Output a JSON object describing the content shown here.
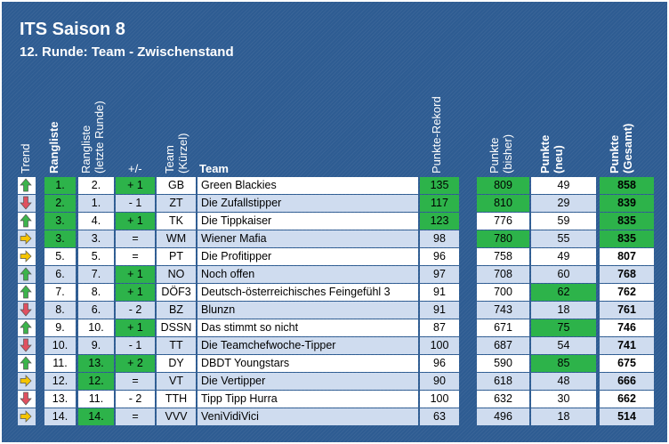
{
  "title": "ITS Saison 8",
  "subtitle": "12. Runde: Team - Zwischenstand",
  "headers": {
    "trend": "Trend",
    "rangliste": "Rangliste",
    "rangliste_letzte": [
      "Rangliste",
      "(letzte Runde)"
    ],
    "plusminus": "+/-",
    "team_kuerzel": [
      "Team",
      "(Kürzel)"
    ],
    "team": "Team",
    "rekord": "Punkte-Rekord",
    "bisher": [
      "Punkte",
      "(bisher)"
    ],
    "neu": [
      "Punkte",
      "(neu)"
    ],
    "gesamt": [
      "Punkte",
      "(Gesamt)"
    ]
  },
  "colors": {
    "green": "#2db34a",
    "band": "#cfdcef",
    "white": "#ffffff",
    "up": "#3cb44b",
    "down": "#e05060",
    "same": "#f5c400"
  },
  "rows": [
    {
      "trend": "up",
      "rank": "1.",
      "last": "2.",
      "pm": "+ 1",
      "code": "GB",
      "team": "Green Blackies",
      "rekord": "135",
      "bisher": "809",
      "neu": "49",
      "gesamt": "858",
      "hl": {
        "rank": 1,
        "pm": 1,
        "rekord": 1,
        "bisher": 1,
        "gesamt": 1
      }
    },
    {
      "trend": "down",
      "rank": "2.",
      "last": "1.",
      "pm": "- 1",
      "code": "ZT",
      "team": "Die Zufallstipper",
      "rekord": "117",
      "bisher": "810",
      "neu": "29",
      "gesamt": "839",
      "hl": {
        "rank": 1,
        "rekord": 1,
        "bisher": 1,
        "gesamt": 1
      }
    },
    {
      "trend": "up",
      "rank": "3.",
      "last": "4.",
      "pm": "+ 1",
      "code": "TK",
      "team": "Die Tippkaiser",
      "rekord": "123",
      "bisher": "776",
      "neu": "59",
      "gesamt": "835",
      "hl": {
        "rank": 1,
        "pm": 1,
        "rekord": 1,
        "gesamt": 1
      }
    },
    {
      "trend": "same",
      "rank": "3.",
      "last": "3.",
      "pm": "=",
      "code": "WM",
      "team": "Wiener Mafia",
      "rekord": "98",
      "bisher": "780",
      "neu": "55",
      "gesamt": "835",
      "hl": {
        "rank": 1,
        "bisher": 1,
        "gesamt": 1
      }
    },
    {
      "trend": "same",
      "rank": "5.",
      "last": "5.",
      "pm": "=",
      "code": "PT",
      "team": "Die Profitipper",
      "rekord": "96",
      "bisher": "758",
      "neu": "49",
      "gesamt": "807",
      "hl": {}
    },
    {
      "trend": "up",
      "rank": "6.",
      "last": "7.",
      "pm": "+ 1",
      "code": "NO",
      "team": "Noch offen",
      "rekord": "97",
      "bisher": "708",
      "neu": "60",
      "gesamt": "768",
      "hl": {
        "pm": 1
      }
    },
    {
      "trend": "up",
      "rank": "7.",
      "last": "8.",
      "pm": "+ 1",
      "code": "DÖF3",
      "team": "Deutsch-österreichisches Feingefühl 3",
      "rekord": "91",
      "bisher": "700",
      "neu": "62",
      "gesamt": "762",
      "hl": {
        "pm": 1,
        "neu": 1
      }
    },
    {
      "trend": "down",
      "rank": "8.",
      "last": "6.",
      "pm": "- 2",
      "code": "BZ",
      "team": "Blunzn",
      "rekord": "91",
      "bisher": "743",
      "neu": "18",
      "gesamt": "761",
      "hl": {}
    },
    {
      "trend": "up",
      "rank": "9.",
      "last": "10.",
      "pm": "+ 1",
      "code": "DSSN",
      "team": "Das stimmt so nicht",
      "rekord": "87",
      "bisher": "671",
      "neu": "75",
      "gesamt": "746",
      "hl": {
        "pm": 1,
        "neu": 1
      }
    },
    {
      "trend": "down",
      "rank": "10.",
      "last": "9.",
      "pm": "- 1",
      "code": "TT",
      "team": "Die Teamchefwoche-Tipper",
      "rekord": "100",
      "bisher": "687",
      "neu": "54",
      "gesamt": "741",
      "hl": {}
    },
    {
      "trend": "up",
      "rank": "11.",
      "last": "13.",
      "pm": "+ 2",
      "code": "DY",
      "team": "DBDT Youngstars",
      "rekord": "96",
      "bisher": "590",
      "neu": "85",
      "gesamt": "675",
      "hl": {
        "last": 1,
        "pm": 1,
        "neu": 1
      }
    },
    {
      "trend": "same",
      "rank": "12.",
      "last": "12.",
      "pm": "=",
      "code": "VT",
      "team": "Die Vertipper",
      "rekord": "90",
      "bisher": "618",
      "neu": "48",
      "gesamt": "666",
      "hl": {
        "last": 1
      }
    },
    {
      "trend": "down",
      "rank": "13.",
      "last": "11.",
      "pm": "- 2",
      "code": "TTH",
      "team": "Tipp Tipp Hurra",
      "rekord": "100",
      "bisher": "632",
      "neu": "30",
      "gesamt": "662",
      "hl": {}
    },
    {
      "trend": "same",
      "rank": "14.",
      "last": "14.",
      "pm": "=",
      "code": "VVV",
      "team": "VeniVidiVici",
      "rekord": "63",
      "bisher": "496",
      "neu": "18",
      "gesamt": "514",
      "hl": {
        "last": 1
      }
    }
  ]
}
